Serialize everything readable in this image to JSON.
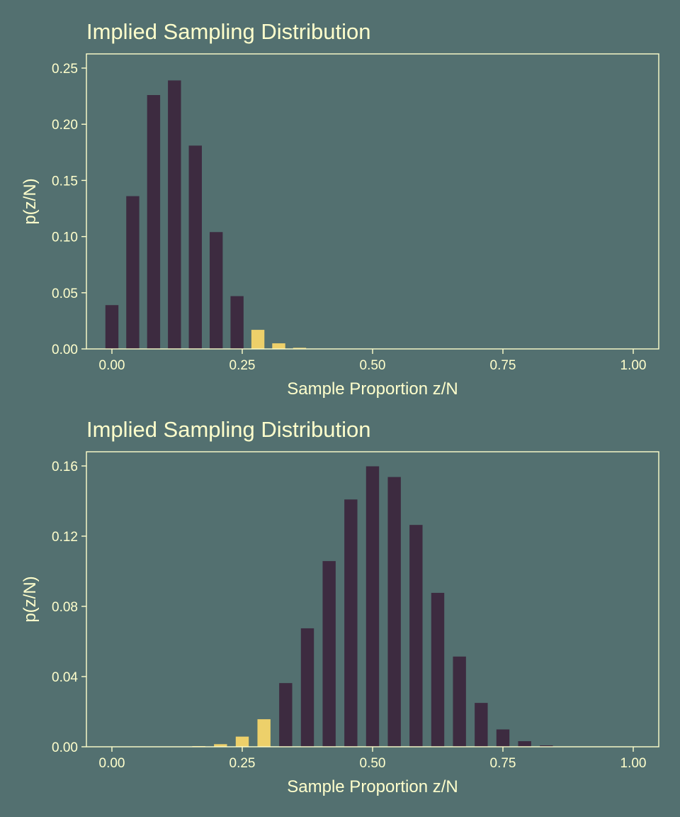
{
  "colors": {
    "background": "#537070",
    "text": "#FFFFCC",
    "bar_main": "#3D2B40",
    "bar_highlight": "#EDD06A",
    "frame": "#FFFFCC"
  },
  "chart_data": [
    {
      "type": "bar",
      "title": "Implied Sampling Distribution",
      "xlabel": "Sample Proportion z/N",
      "ylabel": "p(z/N)",
      "xlim": [
        0,
        1
      ],
      "ylim": [
        0,
        0.25
      ],
      "xticks": [
        0,
        0.25,
        0.5,
        0.75,
        1
      ],
      "xtick_labels": [
        "0.00",
        "0.25",
        "0.50",
        "0.75",
        "1.00"
      ],
      "yticks": [
        0,
        0.05,
        0.1,
        0.15,
        0.2,
        0.25
      ],
      "ytick_labels": [
        "0.00",
        "0.05",
        "0.10",
        "0.15",
        "0.20",
        "0.25"
      ],
      "bar_width": 0.025,
      "x": [
        0,
        0.04,
        0.08,
        0.12,
        0.16,
        0.2,
        0.24,
        0.28,
        0.32,
        0.36,
        0.4,
        0.44,
        0.48,
        0.52,
        0.56,
        0.6,
        0.64,
        0.68,
        0.72,
        0.76,
        0.8,
        0.84,
        0.88,
        0.92,
        0.96,
        1.0
      ],
      "values": [
        0.039,
        0.136,
        0.226,
        0.239,
        0.181,
        0.104,
        0.047,
        0.017,
        0.005,
        0.001,
        0.0003,
        5e-05,
        1e-05,
        0,
        0,
        0,
        0,
        0,
        0,
        0,
        0,
        0,
        0,
        0,
        0,
        0
      ],
      "highlight": [
        false,
        false,
        false,
        false,
        false,
        false,
        false,
        true,
        true,
        true,
        true,
        true,
        true,
        true,
        true,
        true,
        true,
        true,
        true,
        true,
        true,
        true,
        true,
        true,
        true,
        true
      ]
    },
    {
      "type": "bar",
      "title": "Implied Sampling Distribution",
      "xlabel": "Sample Proportion z/N",
      "ylabel": "p(z/N)",
      "xlim": [
        0,
        1
      ],
      "ylim": [
        0,
        0.16
      ],
      "xticks": [
        0,
        0.25,
        0.5,
        0.75,
        1
      ],
      "xtick_labels": [
        "0.00",
        "0.25",
        "0.50",
        "0.75",
        "1.00"
      ],
      "yticks": [
        0,
        0.04,
        0.08,
        0.12,
        0.16
      ],
      "ytick_labels": [
        "0.00",
        "0.04",
        "0.08",
        "0.12",
        "0.16"
      ],
      "bar_width": 0.025,
      "x": [
        0,
        0.04167,
        0.08333,
        0.125,
        0.16667,
        0.20833,
        0.25,
        0.29167,
        0.33333,
        0.375,
        0.41667,
        0.45833,
        0.5,
        0.54167,
        0.58333,
        0.625,
        0.66667,
        0.70833,
        0.75,
        0.79167,
        0.83333,
        0.875,
        0.91667,
        0.95833,
        1.0
      ],
      "values": [
        0,
        0,
        0,
        0.0001,
        0.0004,
        0.0015,
        0.0058,
        0.0157,
        0.0363,
        0.0675,
        0.1058,
        0.1409,
        0.1598,
        0.1537,
        0.1264,
        0.0877,
        0.0514,
        0.025,
        0.0099,
        0.0032,
        0.0008,
        0.0002,
        0,
        0,
        0
      ],
      "highlight": [
        true,
        true,
        true,
        true,
        true,
        true,
        true,
        true,
        false,
        false,
        false,
        false,
        false,
        false,
        false,
        false,
        false,
        false,
        false,
        false,
        false,
        false,
        false,
        false,
        false
      ]
    }
  ]
}
